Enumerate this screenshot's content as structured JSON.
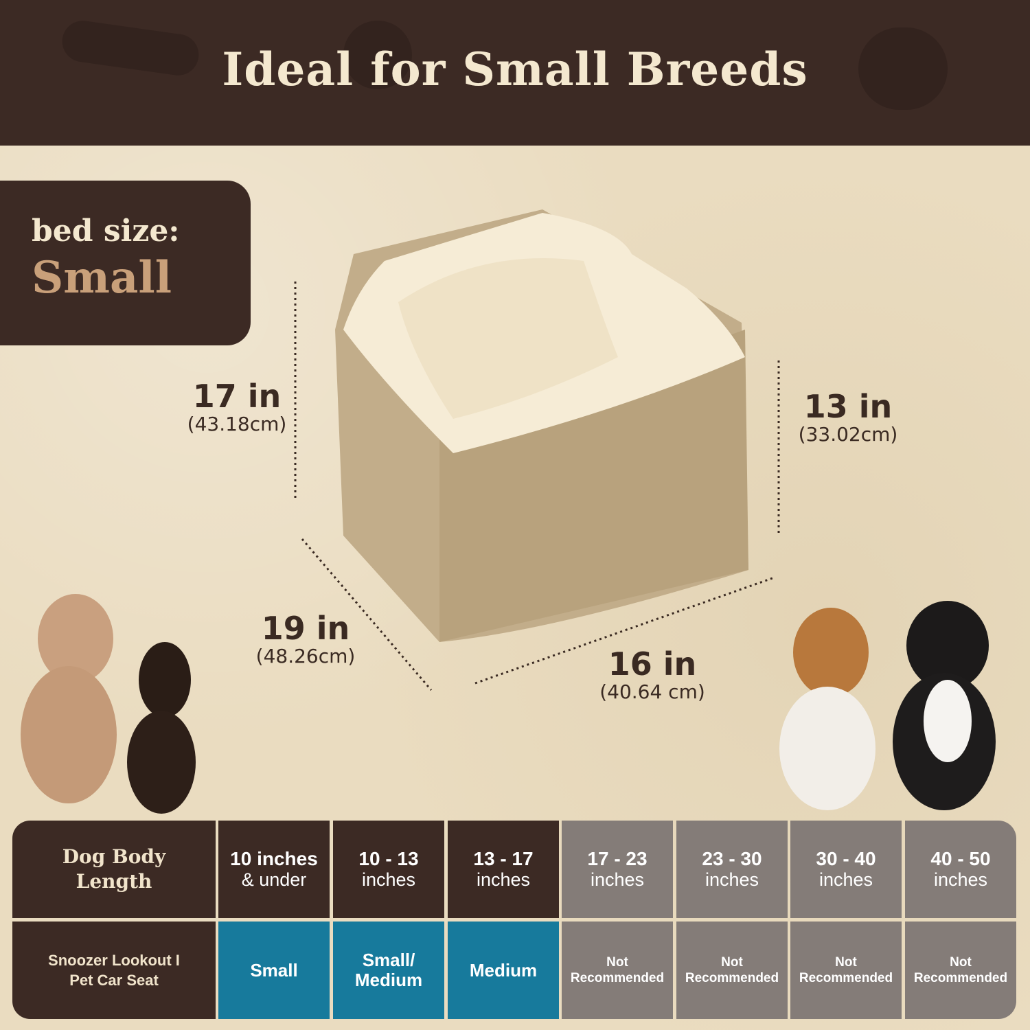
{
  "header": {
    "title": "Ideal for Small Breeds"
  },
  "bed_size": {
    "label": "bed size:",
    "value": "Small"
  },
  "dimensions": {
    "height_back": {
      "in": "17 in",
      "cm": "(43.18cm)"
    },
    "height_front": {
      "in": "13 in",
      "cm": "(33.02cm)"
    },
    "depth": {
      "in": "19 in",
      "cm": "(48.26cm)"
    },
    "width": {
      "in": "16 in",
      "cm": "(40.64 cm)"
    }
  },
  "colors": {
    "brown": "#3c2a24",
    "blue": "#177a9c",
    "grey": "#847c78",
    "accent": "#c9a07a",
    "background": "#eadcc0"
  },
  "table": {
    "row_headers": [
      "Dog Body Length",
      "Snoozer Lookout I Pet Car Seat"
    ],
    "columns": [
      {
        "a": "10 inches",
        "b": "& under",
        "fit": "Small",
        "recommended": true
      },
      {
        "a": "10 - 13",
        "b": "inches",
        "fit": "Small/ Medium",
        "recommended": true
      },
      {
        "a": "13 - 17",
        "b": "inches",
        "fit": "Medium",
        "recommended": true
      },
      {
        "a": "17 - 23",
        "b": "inches",
        "fit_1": "Not",
        "fit_2": "Recommended",
        "recommended": false
      },
      {
        "a": "23 - 30",
        "b": "inches",
        "fit_1": "Not",
        "fit_2": "Recommended",
        "recommended": false
      },
      {
        "a": "30 - 40",
        "b": "inches",
        "fit_1": "Not",
        "fit_2": "Recommended",
        "recommended": false
      },
      {
        "a": "40 - 50",
        "b": "inches",
        "fit_1": "Not",
        "fit_2": "Recommended",
        "recommended": false
      }
    ]
  }
}
